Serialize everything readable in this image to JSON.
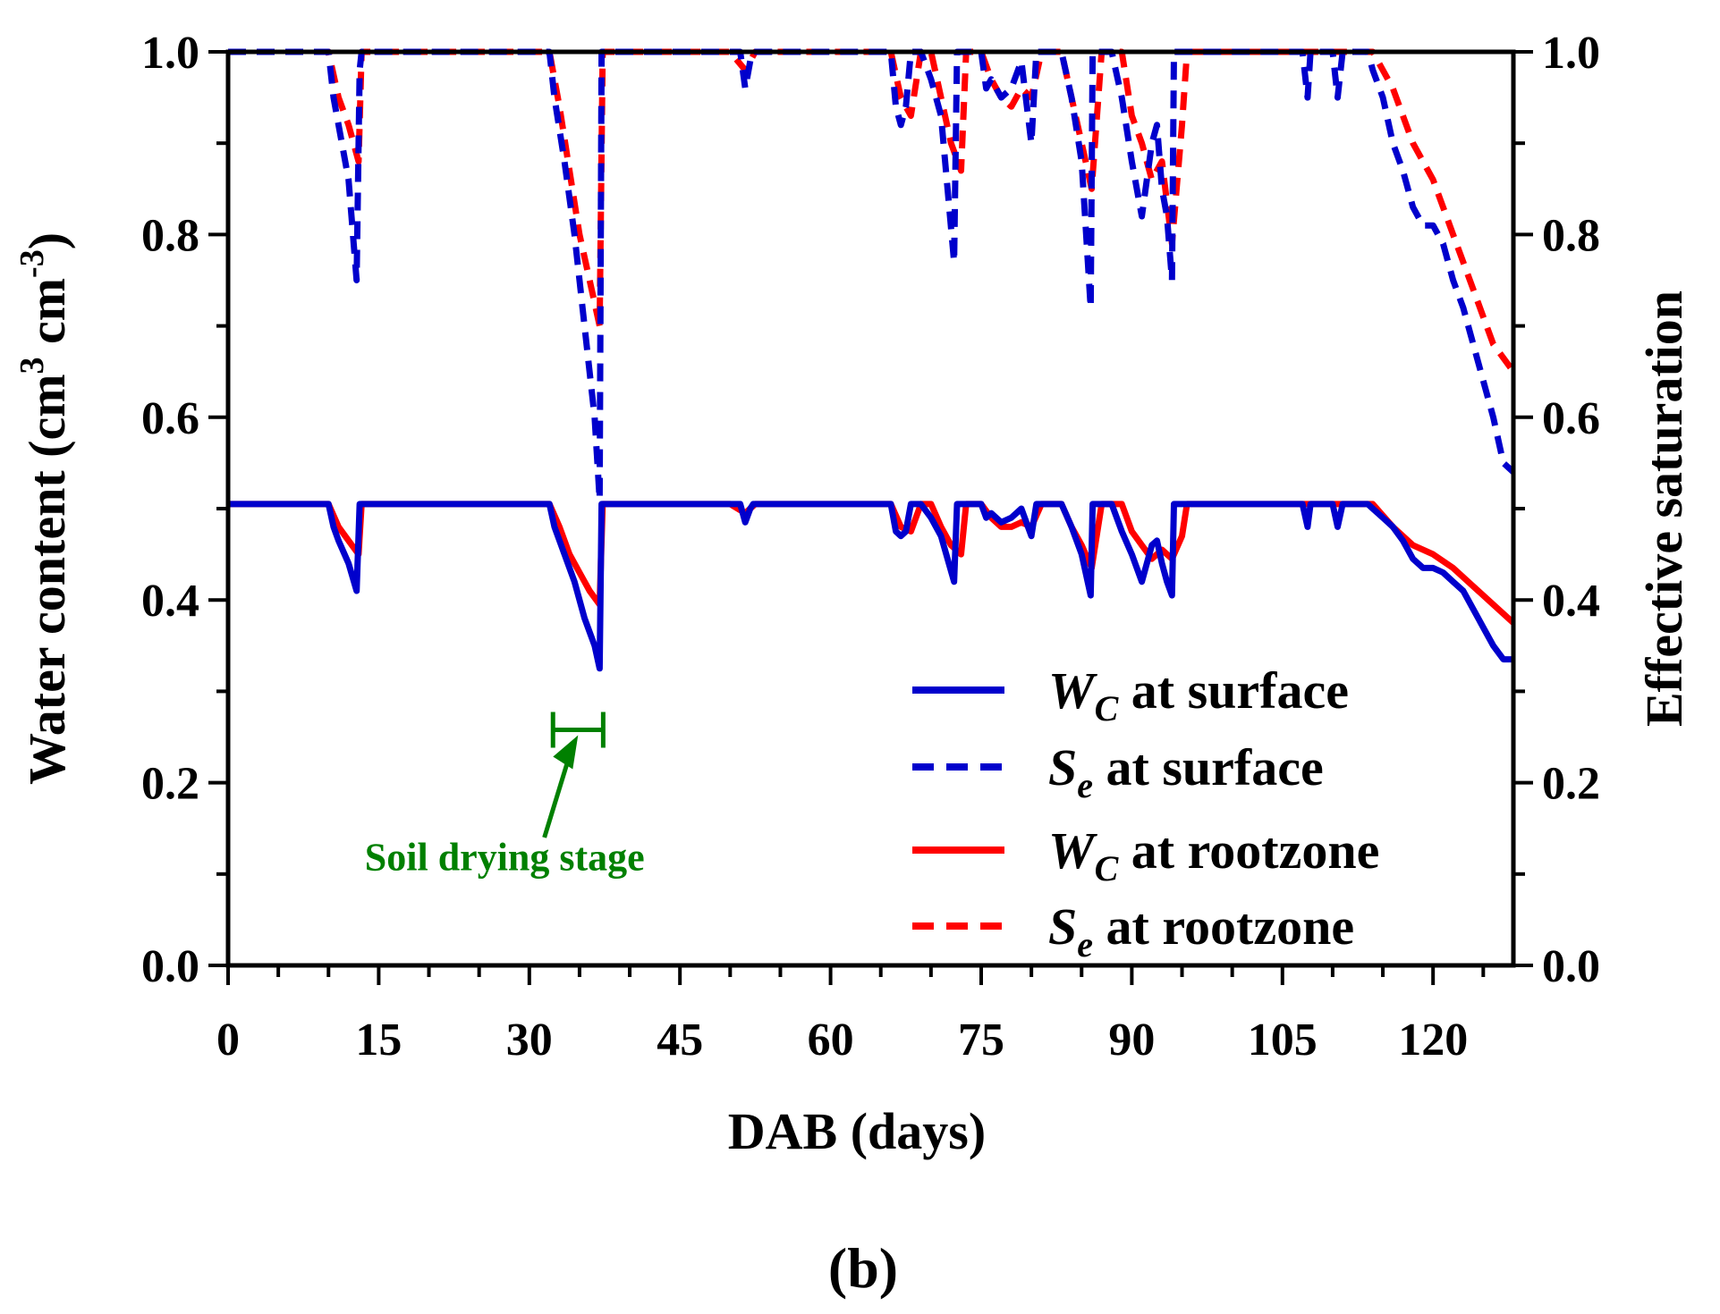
{
  "chart_data": {
    "type": "line",
    "panel_label": "(b)",
    "xlabel": "DAB (days)",
    "ylabel_left": {
      "main": "Water content (cm",
      "sup1": "3",
      "mid": " cm",
      "sup2": "-3",
      "end": ")"
    },
    "ylabel_right": "Effective saturation",
    "xlim": [
      0,
      128
    ],
    "ylim_left": [
      0.0,
      1.0
    ],
    "ylim_right": [
      0.0,
      1.0
    ],
    "x_ticks": [
      0,
      15,
      30,
      45,
      60,
      75,
      90,
      105,
      120
    ],
    "y_ticks_left": [
      "0.0",
      "0.2",
      "0.4",
      "0.6",
      "0.8",
      "1.0"
    ],
    "y_ticks_right": [
      "0.0",
      "0.2",
      "0.4",
      "0.6",
      "0.8",
      "1.0"
    ],
    "legend_position": "lower-right",
    "series": [
      {
        "name": "Wc at surface",
        "legend": {
          "main": "W",
          "sub": "C",
          "rest": " at surface"
        },
        "axis": "left",
        "color": "#0000cc",
        "style": "solid",
        "x": [
          0,
          10,
          10.5,
          11,
          12,
          12.8,
          13.1,
          13.3,
          30,
          32,
          32.5,
          33.5,
          34.5,
          35.5,
          36.5,
          37,
          37.2,
          50,
          51,
          51.5,
          52,
          52.3,
          66,
          66.5,
          67,
          67.5,
          68,
          69,
          70,
          71,
          72.3,
          72.6,
          73,
          73.3,
          75,
          75.5,
          76,
          77,
          78,
          79,
          80,
          80.5,
          81,
          81.2,
          83,
          84,
          85,
          85.9,
          86.1,
          88,
          89,
          90,
          91,
          92,
          92.5,
          93,
          93.5,
          94,
          94.2,
          94.5,
          107,
          107.5,
          107.8,
          110,
          110.5,
          111,
          113.5,
          114,
          115,
          116,
          117,
          118,
          119,
          120,
          121,
          122,
          123,
          124,
          125,
          126,
          127,
          128
        ],
        "y": [
          0.505,
          0.505,
          0.48,
          0.465,
          0.44,
          0.41,
          0.505,
          0.505,
          0.505,
          0.505,
          0.48,
          0.45,
          0.42,
          0.38,
          0.35,
          0.325,
          0.505,
          0.505,
          0.505,
          0.485,
          0.5,
          0.505,
          0.505,
          0.475,
          0.47,
          0.475,
          0.505,
          0.505,
          0.49,
          0.47,
          0.42,
          0.505,
          0.505,
          0.505,
          0.505,
          0.49,
          0.495,
          0.485,
          0.49,
          0.5,
          0.47,
          0.505,
          0.505,
          0.505,
          0.505,
          0.48,
          0.45,
          0.405,
          0.505,
          0.505,
          0.475,
          0.45,
          0.42,
          0.46,
          0.465,
          0.44,
          0.42,
          0.405,
          0.505,
          0.505,
          0.505,
          0.48,
          0.505,
          0.505,
          0.48,
          0.505,
          0.505,
          0.5,
          0.49,
          0.48,
          0.465,
          0.445,
          0.435,
          0.435,
          0.43,
          0.42,
          0.41,
          0.39,
          0.37,
          0.35,
          0.335,
          0.335
        ]
      },
      {
        "name": "Se at surface",
        "legend": {
          "main": "S",
          "sub": "e",
          "rest": " at surface"
        },
        "axis": "right",
        "color": "#0000cc",
        "style": "dashed",
        "x": [
          0,
          10,
          10.5,
          11,
          12,
          12.8,
          13.1,
          13.3,
          30,
          32,
          32.5,
          33.5,
          34.5,
          35.5,
          36.5,
          37,
          37.2,
          50,
          51,
          51.5,
          52,
          52.3,
          66,
          66.5,
          67,
          67.5,
          68,
          69,
          70,
          71,
          72.3,
          72.6,
          73,
          73.3,
          75,
          75.5,
          76,
          77,
          78,
          79,
          80,
          80.5,
          81,
          81.2,
          83,
          84,
          85,
          85.9,
          86.1,
          88,
          89,
          90,
          91,
          92,
          92.5,
          93,
          93.5,
          94,
          94.2,
          94.5,
          107,
          107.5,
          107.8,
          110,
          110.5,
          111,
          113.5,
          114,
          115,
          116,
          117,
          118,
          119,
          120,
          121,
          122,
          123,
          124,
          125,
          126,
          127,
          128
        ],
        "y": [
          1.0,
          1.0,
          0.95,
          0.92,
          0.86,
          0.75,
          0.98,
          1.0,
          1.0,
          1.0,
          0.95,
          0.88,
          0.8,
          0.7,
          0.6,
          0.51,
          1.0,
          1.0,
          1.0,
          0.96,
          0.99,
          1.0,
          1.0,
          0.94,
          0.92,
          0.94,
          1.0,
          1.0,
          0.97,
          0.93,
          0.77,
          1.0,
          1.0,
          1.0,
          1.0,
          0.96,
          0.97,
          0.95,
          0.96,
          0.99,
          0.9,
          1.0,
          1.0,
          1.0,
          1.0,
          0.95,
          0.88,
          0.72,
          1.0,
          1.0,
          0.95,
          0.88,
          0.82,
          0.9,
          0.92,
          0.85,
          0.82,
          0.75,
          1.0,
          1.0,
          1.0,
          0.95,
          1.0,
          1.0,
          0.95,
          1.0,
          1.0,
          0.98,
          0.95,
          0.9,
          0.87,
          0.83,
          0.81,
          0.81,
          0.79,
          0.75,
          0.72,
          0.68,
          0.64,
          0.6,
          0.55,
          0.54
        ]
      },
      {
        "name": "Wc at rootzone",
        "legend": {
          "main": "W",
          "sub": "C",
          "rest": " at rootzone"
        },
        "axis": "left",
        "color": "#ff0000",
        "style": "solid",
        "x": [
          0,
          10,
          11,
          12,
          13,
          13.3,
          30,
          32,
          33,
          34,
          35,
          36,
          37,
          37.3,
          50,
          51.5,
          52.5,
          66,
          67,
          68,
          69,
          70,
          71,
          72,
          73,
          73.5,
          75,
          76,
          77,
          78,
          79,
          80,
          81,
          83,
          84,
          85,
          86,
          87,
          89,
          90,
          91,
          92,
          93,
          94,
          95,
          95.5,
          113.5,
          114,
          116,
          118,
          120,
          122,
          124,
          126,
          128
        ],
        "y": [
          0.505,
          0.505,
          0.48,
          0.465,
          0.45,
          0.505,
          0.505,
          0.505,
          0.48,
          0.45,
          0.43,
          0.41,
          0.395,
          0.505,
          0.505,
          0.495,
          0.505,
          0.505,
          0.48,
          0.475,
          0.505,
          0.505,
          0.48,
          0.46,
          0.45,
          0.505,
          0.505,
          0.49,
          0.48,
          0.48,
          0.485,
          0.48,
          0.505,
          0.505,
          0.48,
          0.46,
          0.435,
          0.505,
          0.505,
          0.475,
          0.46,
          0.445,
          0.455,
          0.445,
          0.47,
          0.505,
          0.505,
          0.505,
          0.48,
          0.46,
          0.45,
          0.435,
          0.415,
          0.395,
          0.375
        ]
      },
      {
        "name": "Se at rootzone",
        "legend": {
          "main": "S",
          "sub": "e",
          "rest": " at rootzone"
        },
        "axis": "right",
        "color": "#ff0000",
        "style": "dashed",
        "x": [
          0,
          10,
          11,
          12,
          13,
          13.3,
          30,
          32,
          33,
          34,
          35,
          36,
          37,
          37.3,
          50,
          51.5,
          52.5,
          66,
          67,
          68,
          69,
          70,
          71,
          72,
          73,
          73.5,
          75,
          76,
          77,
          78,
          79,
          80,
          81,
          83,
          84,
          85,
          86,
          87,
          89,
          90,
          91,
          92,
          93,
          94,
          95,
          95.5,
          113.5,
          114,
          116,
          118,
          120,
          122,
          124,
          126,
          128
        ],
        "y": [
          1.0,
          1.0,
          0.95,
          0.92,
          0.88,
          1.0,
          1.0,
          1.0,
          0.94,
          0.87,
          0.8,
          0.75,
          0.7,
          1.0,
          1.0,
          0.98,
          1.0,
          1.0,
          0.95,
          0.93,
          1.0,
          1.0,
          0.95,
          0.9,
          0.87,
          1.0,
          1.0,
          0.97,
          0.95,
          0.94,
          0.96,
          0.95,
          1.0,
          1.0,
          0.95,
          0.9,
          0.85,
          1.0,
          1.0,
          0.93,
          0.9,
          0.86,
          0.88,
          0.79,
          0.92,
          1.0,
          1.0,
          1.0,
          0.96,
          0.9,
          0.86,
          0.8,
          0.74,
          0.68,
          0.65
        ]
      }
    ],
    "annotation": {
      "text": "Soil drying stage",
      "color": "#008000",
      "bracket_x": [
        32,
        37
      ],
      "bracket_y": 0.25,
      "text_x": 32,
      "text_y": 0.12
    }
  }
}
